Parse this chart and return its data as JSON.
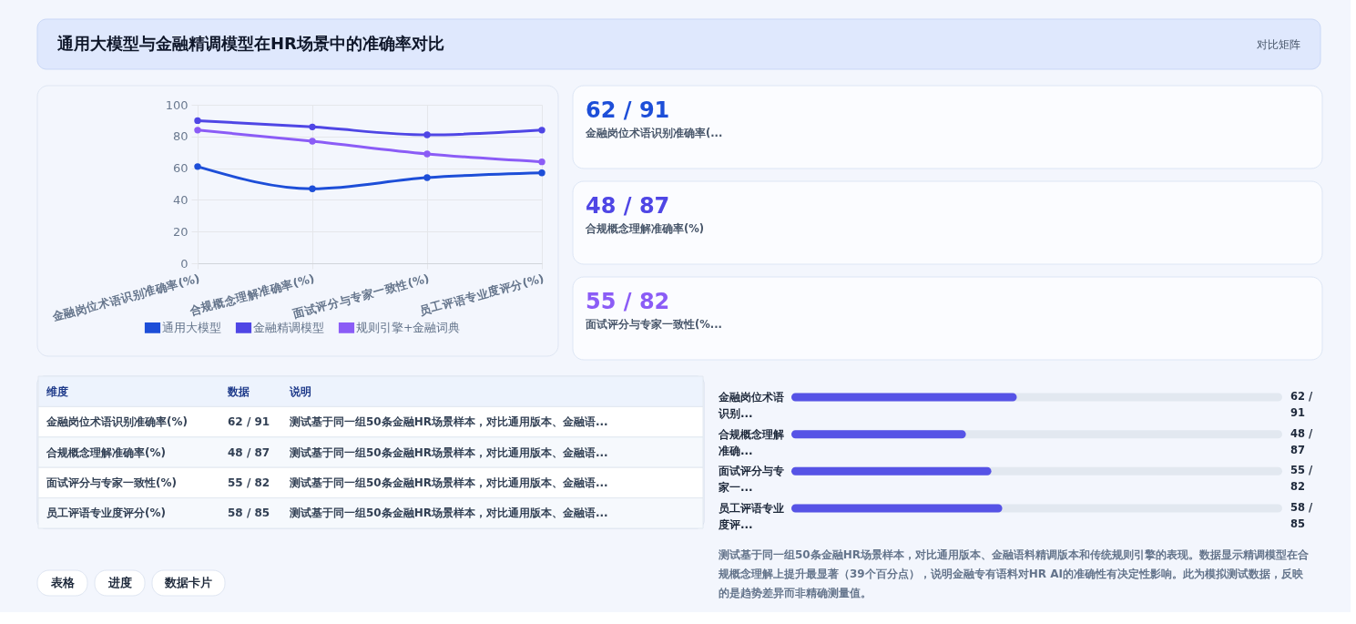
{
  "chart_data": [
    {
      "type": "other",
      "title": "通用大模型与金融精调模型在HR场景中的准确率对比",
      "subtitle": "对比矩阵"
    },
    {
      "type": "line",
      "categories": [
        "金融岗位术语识别准确率(%)",
        "合规概念理解准确率(%)",
        "面试评分与专家一致性(%)",
        "员工评语专业度评分(%)"
      ],
      "series": [
        {
          "name": "通用大模型",
          "color": "#1d4ed8",
          "values": [
            61,
            47,
            54,
            57
          ]
        },
        {
          "name": "金融精调模型",
          "color": "#4f46e5",
          "values": [
            90,
            86,
            81,
            84
          ]
        },
        {
          "name": "规则引擎+金融词典",
          "color": "#8b5cf6",
          "values": [
            84,
            77,
            69,
            64
          ]
        }
      ],
      "ylim": [
        0,
        100
      ],
      "yticks": [
        0,
        20,
        40,
        60,
        80,
        100
      ],
      "grid": true,
      "legend": "bottom",
      "marker": "circle",
      "line_style": "solid"
    },
    {
      "type": "other",
      "categories": [
        "金融岗位术语识别准确率(...",
        "合规概念理解准确率(%)",
        "面试评分与专家一致性(%..."
      ],
      "value_labels": [
        "62 / 91",
        "48 / 87",
        "55 / 82"
      ]
    },
    {
      "type": "other",
      "categories": [
        "金融岗位术语识别准确率(%)",
        "合规概念理解准确率(%)",
        "面试评分与专家一致性(%)",
        "员工评语专业度评分(%)"
      ],
      "value_labels": [
        "62 / 91",
        "48 / 87",
        "55 / 82",
        "58 / 85"
      ],
      "annotations": [
        "维度",
        "数据",
        "说明",
        "测试基于同一组50条金融HR场景样本，对比通用版本、金融语...",
        "测试基于同一组50条金融HR场景样本，对比通用版本、金融语...",
        "测试基于同一组50条金融HR场景样本，对比通用版本、金融语...",
        "测试基于同一组50条金融HR场景样本，对比通用版本、金融语..."
      ]
    },
    {
      "type": "bar",
      "orientation": "horizontal",
      "categories": [
        "金融岗位术语识别...",
        "合规概念理解准确...",
        "面试评分与专家一...",
        "员工评语专业度评..."
      ],
      "values": [
        62,
        48,
        55,
        58
      ],
      "value_labels": [
        "62 / 91",
        "48 / 87",
        "55 / 82",
        "58 / 85"
      ],
      "color": "#5653e6",
      "xlim": [
        0,
        135
      ],
      "tick_labels": "y",
      "annotations": [
        "测试基于同一组50条金融HR场景样本，对比通用版本、金融语料精调版本和传统规则引擎的表现。数据显示精调模型在合规概念理解上提升最显著（39个百分点），说明金融专有语料对HR AI的准确性有决定性影响。此为模拟测试数据，反映的是趋势差异而非精确测量值。"
      ]
    },
    {
      "type": "other",
      "annotations": [
        "表格",
        "进度",
        "数据卡片"
      ]
    }
  ]
}
